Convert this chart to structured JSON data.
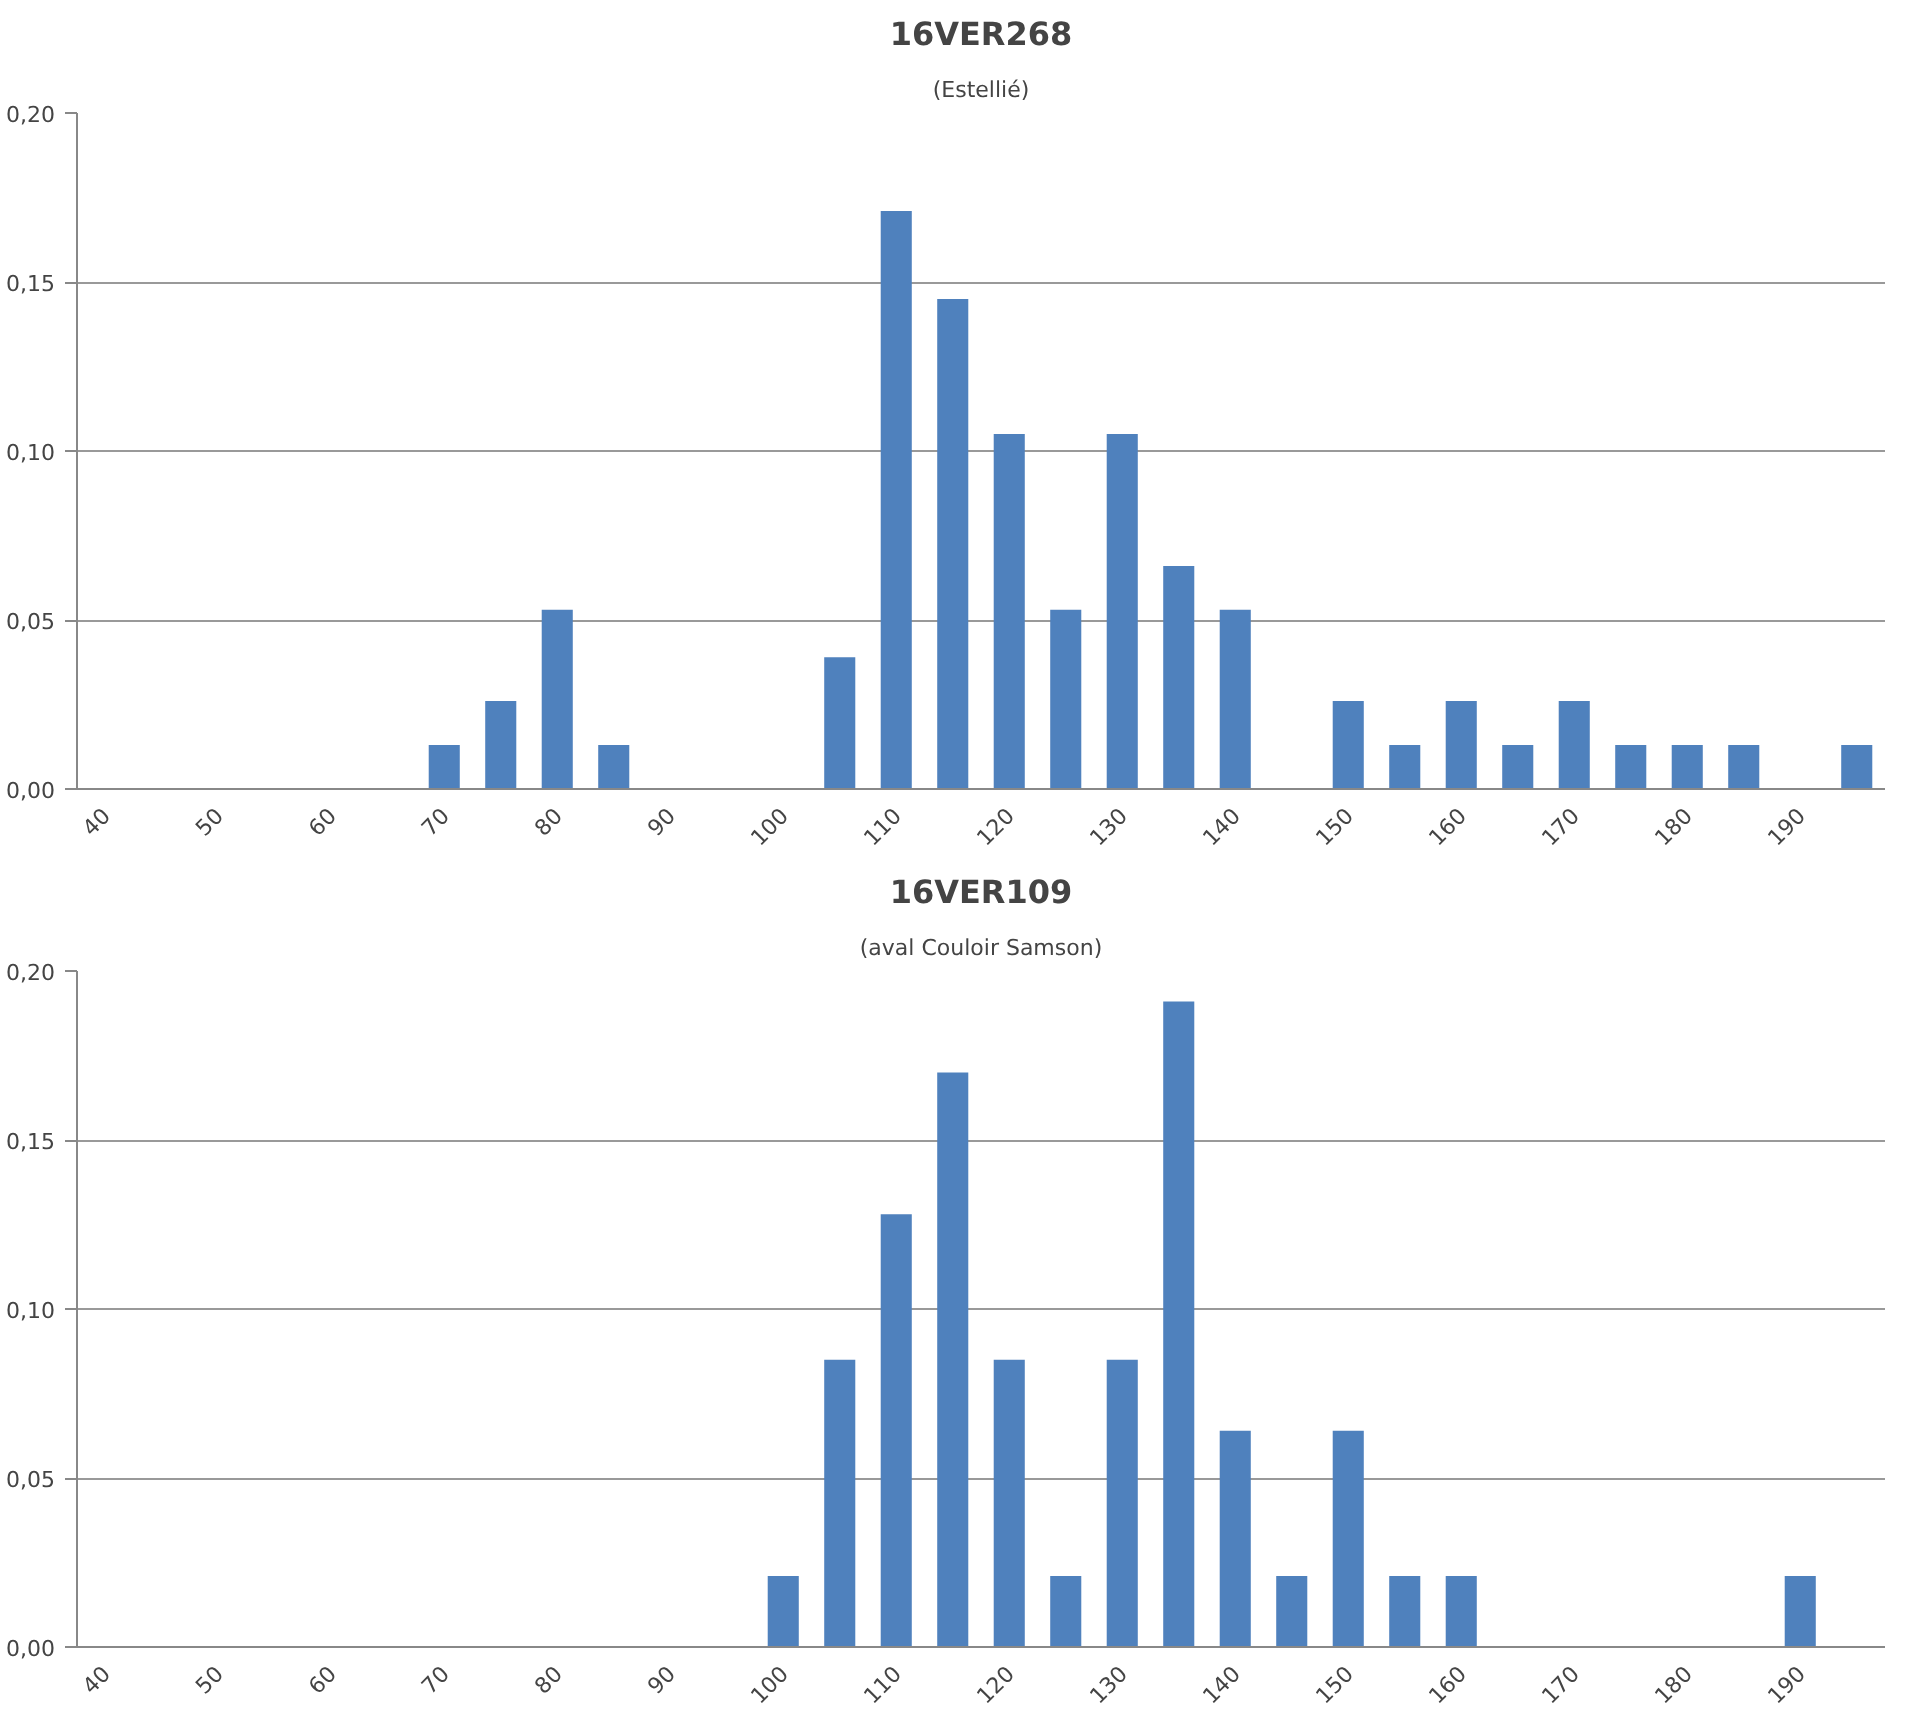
{
  "chart_data": [
    {
      "type": "bar",
      "title": "16VER268",
      "subtitle": "(Estellié)",
      "categories": [
        "40",
        null,
        "50",
        null,
        "60",
        null,
        "70",
        null,
        "80",
        null,
        "90",
        null,
        "100",
        null,
        "110",
        null,
        "120",
        null,
        "130",
        null,
        "140",
        null,
        "150",
        null,
        "160",
        null,
        "170",
        null,
        "180",
        null,
        "190",
        null
      ],
      "values": [
        0,
        0,
        0,
        0,
        0,
        0,
        0.013,
        0.026,
        0.053,
        0.013,
        0,
        0,
        0,
        0.039,
        0.171,
        0.145,
        0.105,
        0.053,
        0.105,
        0.066,
        0.053,
        0,
        0.026,
        0.013,
        0.026,
        0.013,
        0.026,
        0.013,
        0.013,
        0.013,
        0,
        0.013
      ],
      "color": "#4f81bd",
      "ylim": [
        0,
        0.2
      ],
      "yticks": [
        {
          "value": 0,
          "label": "0,00"
        },
        {
          "value": 0.05,
          "label": "0,05"
        },
        {
          "value": 0.1,
          "label": "0,10"
        },
        {
          "value": 0.15,
          "label": "0,15"
        },
        {
          "value": 0.2,
          "label": "0,20"
        }
      ],
      "grid": "y"
    },
    {
      "type": "bar",
      "title": "16VER109",
      "subtitle": "(aval Couloir Samson)",
      "categories": [
        "40",
        null,
        "50",
        null,
        "60",
        null,
        "70",
        null,
        "80",
        null,
        "90",
        null,
        "100",
        null,
        "110",
        null,
        "120",
        null,
        "130",
        null,
        "140",
        null,
        "150",
        null,
        "160",
        null,
        "170",
        null,
        "180",
        null,
        "190",
        null
      ],
      "values": [
        0,
        0,
        0,
        0,
        0,
        0,
        0,
        0,
        0,
        0,
        0,
        0,
        0.021,
        0.085,
        0.128,
        0.17,
        0.085,
        0.021,
        0.085,
        0.191,
        0.064,
        0.021,
        0.064,
        0.021,
        0.021,
        0,
        0,
        0,
        0,
        0,
        0.021,
        0
      ],
      "color": "#4f81bd",
      "ylim": [
        0,
        0.2
      ],
      "yticks": [
        {
          "value": 0,
          "label": "0,00"
        },
        {
          "value": 0.05,
          "label": "0,05"
        },
        {
          "value": 0.1,
          "label": "0,10"
        },
        {
          "value": 0.15,
          "label": "0,15"
        },
        {
          "value": 0.2,
          "label": "0,20"
        }
      ],
      "grid": "y"
    }
  ]
}
